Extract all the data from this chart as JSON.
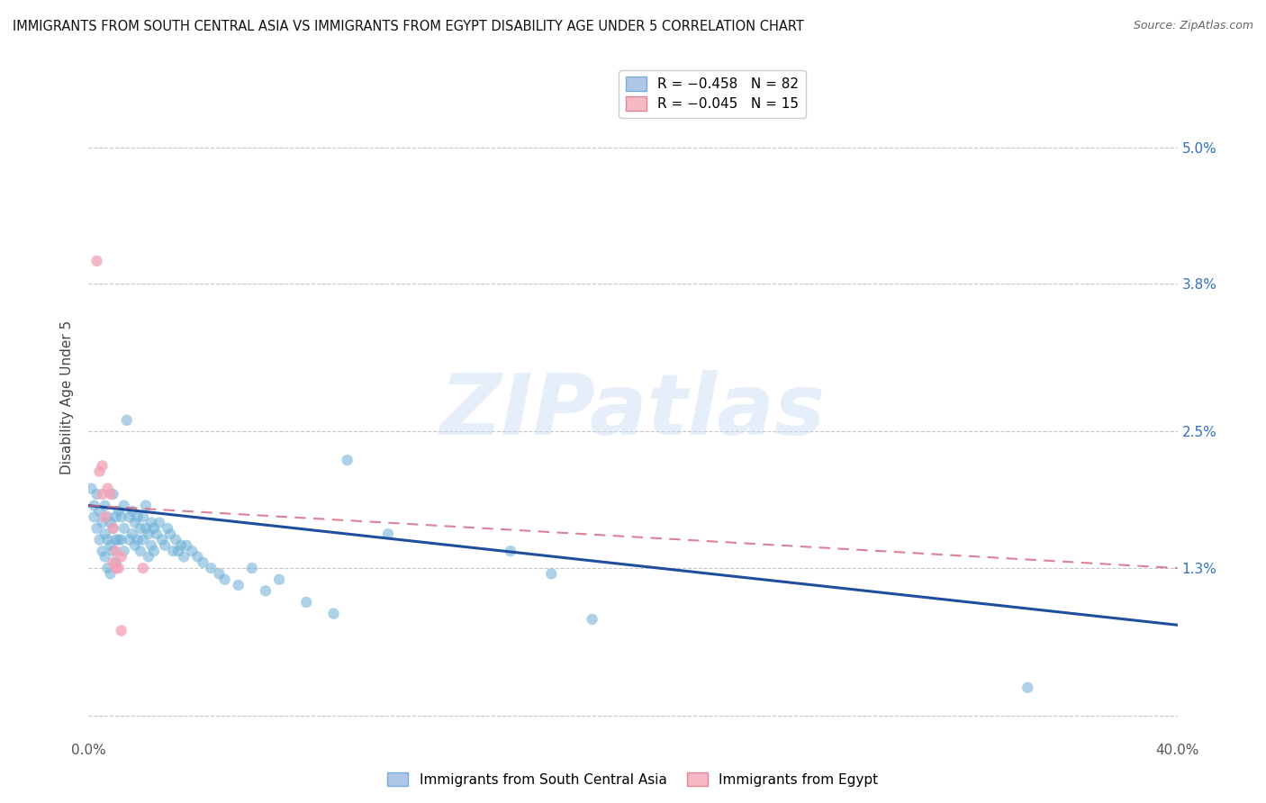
{
  "title": "IMMIGRANTS FROM SOUTH CENTRAL ASIA VS IMMIGRANTS FROM EGYPT DISABILITY AGE UNDER 5 CORRELATION CHART",
  "source": "Source: ZipAtlas.com",
  "ylabel": "Disability Age Under 5",
  "xlim": [
    0.0,
    0.4
  ],
  "ylim": [
    -0.002,
    0.058
  ],
  "xticks": [
    0.0,
    0.1,
    0.2,
    0.3,
    0.4
  ],
  "xtick_labels": [
    "0.0%",
    "",
    "",
    "",
    "40.0%"
  ],
  "yticks": [
    0.0,
    0.013,
    0.025,
    0.038,
    0.05
  ],
  "ytick_labels_right": [
    "",
    "1.3%",
    "2.5%",
    "3.8%",
    "5.0%"
  ],
  "background_color": "#ffffff",
  "grid_color": "#c8c8c8",
  "watermark_text": "ZIPatlas",
  "legend_r_entries": [
    {
      "label": "R = −0.458   N = 82",
      "facecolor": "#aec6e8",
      "edgecolor": "#7aafd4"
    },
    {
      "label": "R = −0.045   N = 15",
      "facecolor": "#f5b8c4",
      "edgecolor": "#e08898"
    }
  ],
  "bottom_legend": [
    {
      "label": "Immigrants from South Central Asia",
      "facecolor": "#aec6e8",
      "edgecolor": "#7aafd4"
    },
    {
      "label": "Immigrants from Egypt",
      "facecolor": "#f5b8c4",
      "edgecolor": "#e08898"
    }
  ],
  "blue_color": "#6baed6",
  "pink_color": "#f4a0b5",
  "trendline_blue_color": "#1f4e9e",
  "trendline_pink_color": "#d4637a",
  "tick_color_right": "#3070c0",
  "title_fontsize": 10.5,
  "axis_label_fontsize": 11,
  "tick_fontsize": 11,
  "blue_scatter": [
    [
      0.001,
      0.02
    ],
    [
      0.002,
      0.0185
    ],
    [
      0.002,
      0.0175
    ],
    [
      0.003,
      0.0195
    ],
    [
      0.003,
      0.0165
    ],
    [
      0.004,
      0.018
    ],
    [
      0.004,
      0.0155
    ],
    [
      0.005,
      0.017
    ],
    [
      0.005,
      0.0145
    ],
    [
      0.006,
      0.0185
    ],
    [
      0.006,
      0.016
    ],
    [
      0.006,
      0.014
    ],
    [
      0.007,
      0.0175
    ],
    [
      0.007,
      0.0155
    ],
    [
      0.007,
      0.013
    ],
    [
      0.008,
      0.017
    ],
    [
      0.008,
      0.015
    ],
    [
      0.008,
      0.0125
    ],
    [
      0.009,
      0.0195
    ],
    [
      0.009,
      0.0165
    ],
    [
      0.009,
      0.0145
    ],
    [
      0.01,
      0.0175
    ],
    [
      0.01,
      0.0155
    ],
    [
      0.01,
      0.0135
    ],
    [
      0.011,
      0.018
    ],
    [
      0.011,
      0.0155
    ],
    [
      0.012,
      0.0175
    ],
    [
      0.012,
      0.0155
    ],
    [
      0.013,
      0.0185
    ],
    [
      0.013,
      0.0165
    ],
    [
      0.013,
      0.0145
    ],
    [
      0.014,
      0.026
    ],
    [
      0.015,
      0.0175
    ],
    [
      0.015,
      0.0155
    ],
    [
      0.016,
      0.018
    ],
    [
      0.016,
      0.016
    ],
    [
      0.017,
      0.017
    ],
    [
      0.017,
      0.015
    ],
    [
      0.018,
      0.0175
    ],
    [
      0.018,
      0.0155
    ],
    [
      0.019,
      0.0165
    ],
    [
      0.019,
      0.0145
    ],
    [
      0.02,
      0.0175
    ],
    [
      0.02,
      0.0155
    ],
    [
      0.021,
      0.0185
    ],
    [
      0.021,
      0.0165
    ],
    [
      0.022,
      0.016
    ],
    [
      0.022,
      0.014
    ],
    [
      0.023,
      0.017
    ],
    [
      0.023,
      0.015
    ],
    [
      0.024,
      0.0165
    ],
    [
      0.024,
      0.0145
    ],
    [
      0.025,
      0.016
    ],
    [
      0.026,
      0.017
    ],
    [
      0.027,
      0.0155
    ],
    [
      0.028,
      0.015
    ],
    [
      0.029,
      0.0165
    ],
    [
      0.03,
      0.016
    ],
    [
      0.031,
      0.0145
    ],
    [
      0.032,
      0.0155
    ],
    [
      0.033,
      0.0145
    ],
    [
      0.034,
      0.015
    ],
    [
      0.035,
      0.014
    ],
    [
      0.036,
      0.015
    ],
    [
      0.038,
      0.0145
    ],
    [
      0.04,
      0.014
    ],
    [
      0.042,
      0.0135
    ],
    [
      0.045,
      0.013
    ],
    [
      0.048,
      0.0125
    ],
    [
      0.05,
      0.012
    ],
    [
      0.055,
      0.0115
    ],
    [
      0.06,
      0.013
    ],
    [
      0.065,
      0.011
    ],
    [
      0.07,
      0.012
    ],
    [
      0.08,
      0.01
    ],
    [
      0.09,
      0.009
    ],
    [
      0.095,
      0.0225
    ],
    [
      0.11,
      0.016
    ],
    [
      0.155,
      0.0145
    ],
    [
      0.17,
      0.0125
    ],
    [
      0.185,
      0.0085
    ],
    [
      0.345,
      0.0025
    ]
  ],
  "pink_scatter": [
    [
      0.003,
      0.04
    ],
    [
      0.004,
      0.0215
    ],
    [
      0.005,
      0.022
    ],
    [
      0.005,
      0.0195
    ],
    [
      0.006,
      0.0175
    ],
    [
      0.007,
      0.02
    ],
    [
      0.008,
      0.0195
    ],
    [
      0.009,
      0.0165
    ],
    [
      0.009,
      0.0135
    ],
    [
      0.01,
      0.0145
    ],
    [
      0.01,
      0.013
    ],
    [
      0.011,
      0.013
    ],
    [
      0.012,
      0.014
    ],
    [
      0.012,
      0.0075
    ],
    [
      0.02,
      0.013
    ]
  ],
  "blue_trendline_x": [
    0.0,
    0.4
  ],
  "blue_trendline_y": [
    0.0185,
    0.008
  ],
  "pink_trendline_x": [
    0.0,
    0.4
  ],
  "pink_trendline_y": [
    0.0185,
    0.013
  ]
}
